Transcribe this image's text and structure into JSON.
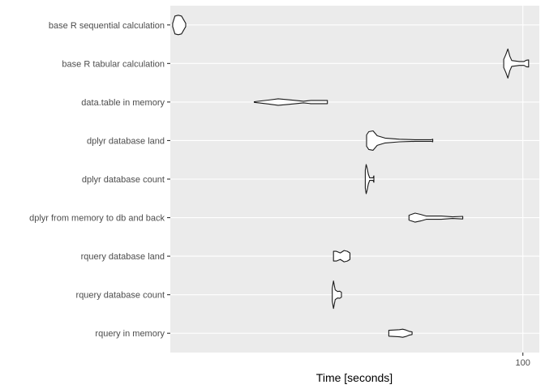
{
  "chart_data": {
    "type": "violin",
    "orientation": "horizontal",
    "title": "",
    "xlabel": "Time [seconds]",
    "ylabel": "",
    "x_scale": "log10",
    "xlim": [
      5,
      115
    ],
    "x_ticks": [
      100
    ],
    "x_tick_labels": [
      "100"
    ],
    "grid": true,
    "legend": "none",
    "panel_background": "#ebebeb",
    "grid_color": "#ffffff",
    "categories": [
      "base R sequential calculation",
      "base R tabular calculation",
      "data.table in memory",
      "dplyr database land",
      "dplyr database count",
      "dplyr from memory to db and back",
      "rquery database land",
      "rquery database count",
      "rquery in memory"
    ],
    "series": [
      {
        "category": "base R sequential calculation",
        "range": [
          5.1,
          5.7
        ],
        "profile": [
          [
            5.1,
            0.1
          ],
          [
            5.2,
            0.55
          ],
          [
            5.35,
            0.6
          ],
          [
            5.5,
            0.55
          ],
          [
            5.7,
            0.1
          ]
        ]
      },
      {
        "category": "base R tabular calculation",
        "range": [
          85,
          105
        ],
        "profile": [
          [
            85,
            0.25
          ],
          [
            86.5,
            0.55
          ],
          [
            88,
            0.9
          ],
          [
            89.5,
            0.45
          ],
          [
            91,
            0.18
          ],
          [
            94,
            0.15
          ],
          [
            97,
            0.12
          ],
          [
            99,
            0.12
          ],
          [
            101,
            0.12
          ],
          [
            103,
            0.2
          ],
          [
            105,
            0.22
          ]
        ]
      },
      {
        "category": "data.table in memory",
        "range": [
          10.2,
          19.0
        ],
        "profile": [
          [
            10.2,
            0.02
          ],
          [
            11.5,
            0.12
          ],
          [
            12.5,
            0.2
          ],
          [
            13.5,
            0.15
          ],
          [
            14.5,
            0.1
          ],
          [
            15.5,
            0.05
          ],
          [
            16.5,
            0.1
          ],
          [
            19.0,
            0.1
          ]
        ]
      },
      {
        "category": "dplyr database land",
        "range": [
          26.5,
          46.5
        ],
        "profile": [
          [
            26.5,
            0.35
          ],
          [
            27,
            0.55
          ],
          [
            28,
            0.6
          ],
          [
            29,
            0.3
          ],
          [
            31,
            0.15
          ],
          [
            35,
            0.08
          ],
          [
            40,
            0.05
          ],
          [
            46,
            0.05
          ],
          [
            46.5,
            0.08
          ]
        ]
      },
      {
        "category": "dplyr database count",
        "range": [
          26.2,
          28.2
        ],
        "profile": [
          [
            26.2,
            0.55
          ],
          [
            26.4,
            0.9
          ],
          [
            26.6,
            0.7
          ],
          [
            26.9,
            0.3
          ],
          [
            27.2,
            0.08
          ],
          [
            28.0,
            0.08
          ],
          [
            28.2,
            0.2
          ]
        ]
      },
      {
        "category": "dplyr from memory to db and back",
        "range": [
          38,
          60
        ],
        "profile": [
          [
            38,
            0.15
          ],
          [
            40,
            0.28
          ],
          [
            42,
            0.2
          ],
          [
            44,
            0.1
          ],
          [
            47,
            0.1
          ],
          [
            50,
            0.1
          ],
          [
            55,
            0.05
          ],
          [
            60,
            0.08
          ]
        ]
      },
      {
        "category": "rquery database land",
        "range": [
          20,
          23
        ],
        "profile": [
          [
            20,
            0.3
          ],
          [
            20.5,
            0.3
          ],
          [
            21.2,
            0.2
          ],
          [
            21.9,
            0.35
          ],
          [
            22.5,
            0.3
          ],
          [
            23,
            0.2
          ]
        ]
      },
      {
        "category": "rquery database count",
        "range": [
          19.8,
          21.4
        ],
        "profile": [
          [
            19.8,
            0.4
          ],
          [
            20.0,
            0.85
          ],
          [
            20.3,
            0.3
          ],
          [
            20.7,
            0.2
          ],
          [
            21.1,
            0.22
          ],
          [
            21.4,
            0.15
          ]
        ]
      },
      {
        "category": "rquery in memory",
        "range": [
          32,
          39
        ],
        "profile": [
          [
            32,
            0.18
          ],
          [
            33.5,
            0.2
          ],
          [
            35,
            0.22
          ],
          [
            36,
            0.25
          ],
          [
            37,
            0.2
          ],
          [
            38,
            0.12
          ],
          [
            39,
            0.08
          ]
        ]
      }
    ]
  }
}
